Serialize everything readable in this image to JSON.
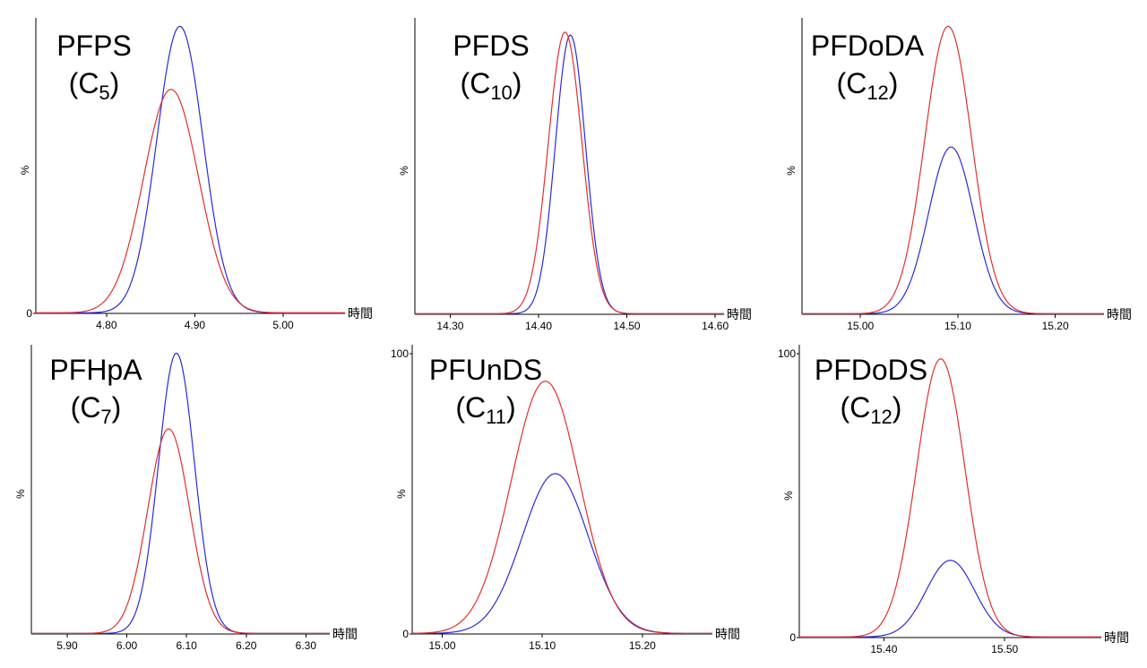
{
  "chart_data": [
    {
      "type": "line",
      "title": "PFPS",
      "subtitle": "(C5)",
      "carbon_number": "5",
      "xlabel": "時間",
      "ylabel": "%",
      "xlim": [
        4.72,
        5.07
      ],
      "ylim": [
        0,
        100
      ],
      "x_ticks": [
        4.8,
        4.9,
        5.0
      ],
      "x_tick_labels": [
        "4.80",
        "4.90",
        "5.00"
      ],
      "y_ticks": [
        0
      ],
      "y_tick_labels": [
        "0"
      ],
      "series": [
        {
          "color": "#2b2bd6",
          "values": {
            "center": 4.883,
            "sigma": 0.026,
            "peak": 100,
            "tail": 0.02
          }
        },
        {
          "color": "#e0302e",
          "values": {
            "center": 4.873,
            "sigma": 0.031,
            "peak": 78,
            "tail": 0.018
          }
        }
      ]
    },
    {
      "type": "line",
      "title": "PFDS",
      "subtitle": "(C10)",
      "carbon_number": "10",
      "xlabel": "時間",
      "ylabel": "%",
      "xlim": [
        14.26,
        14.61
      ],
      "ylim": [
        0,
        100
      ],
      "x_ticks": [
        14.3,
        14.4,
        14.5,
        14.6
      ],
      "x_tick_labels": [
        "14.30",
        "14.40",
        "14.50",
        "14.60"
      ],
      "y_ticks": [],
      "y_tick_labels": [],
      "series": [
        {
          "color": "#2b2bd6",
          "values": {
            "center": 14.436,
            "sigma": 0.017,
            "peak": 97,
            "tail": 0.012
          }
        },
        {
          "color": "#e0302e",
          "values": {
            "center": 14.43,
            "sigma": 0.019,
            "peak": 98,
            "tail": 0.012
          }
        }
      ]
    },
    {
      "type": "line",
      "title": "PFDoDA",
      "subtitle": "(C12)",
      "carbon_number": "12",
      "xlabel": "時間",
      "ylabel": "%",
      "xlim": [
        14.94,
        15.25
      ],
      "ylim": [
        0,
        100
      ],
      "x_ticks": [
        15.0,
        15.1,
        15.2
      ],
      "x_tick_labels": [
        "15.00",
        "15.10",
        "15.20"
      ],
      "y_ticks": [],
      "y_tick_labels": [],
      "series": [
        {
          "color": "#2b2bd6",
          "values": {
            "center": 15.093,
            "sigma": 0.023,
            "peak": 58,
            "tail": 0.015
          }
        },
        {
          "color": "#e0302e",
          "values": {
            "center": 15.09,
            "sigma": 0.024,
            "peak": 100,
            "tail": 0.015
          }
        }
      ]
    },
    {
      "type": "line",
      "title": "PFHpA",
      "subtitle": "(C7)",
      "carbon_number": "7",
      "xlabel": "時間",
      "ylabel": "%",
      "xlim": [
        5.84,
        6.34
      ],
      "ylim": [
        0,
        100
      ],
      "x_ticks": [
        5.9,
        6.0,
        6.1,
        6.2,
        6.3
      ],
      "x_tick_labels": [
        "5.90",
        "6.00",
        "6.10",
        "6.20",
        "6.30"
      ],
      "y_ticks": [],
      "y_tick_labels": [],
      "series": [
        {
          "color": "#2b2bd6",
          "values": {
            "center": 6.083,
            "sigma": 0.03,
            "peak": 100,
            "tail": 0.025
          }
        },
        {
          "color": "#e0302e",
          "values": {
            "center": 6.07,
            "sigma": 0.035,
            "peak": 73,
            "tail": 0.02
          }
        }
      ]
    },
    {
      "type": "line",
      "title": "PFUnDS",
      "subtitle": "(C11)",
      "carbon_number": "11",
      "xlabel": "時間",
      "ylabel": "%",
      "xlim": [
        14.97,
        15.27
      ],
      "ylim": [
        0,
        100
      ],
      "x_ticks": [
        15.0,
        15.1,
        15.2
      ],
      "x_tick_labels": [
        "15.00",
        "15.10",
        "15.20"
      ],
      "y_ticks": [
        0,
        100
      ],
      "y_tick_labels": [
        "0",
        "100"
      ],
      "series": [
        {
          "color": "#2b2bd6",
          "values": {
            "center": 15.113,
            "sigma": 0.033,
            "peak": 57,
            "tail": 0.012
          }
        },
        {
          "color": "#e0302e",
          "values": {
            "center": 15.103,
            "sigma": 0.034,
            "peak": 90,
            "tail": 0.012
          }
        }
      ]
    },
    {
      "type": "line",
      "title": "PFDoDS",
      "subtitle": "(C12)",
      "carbon_number": "12",
      "xlabel": "時間",
      "ylabel": "%",
      "xlim": [
        15.33,
        15.58
      ],
      "ylim": [
        0,
        100
      ],
      "x_ticks": [
        15.4,
        15.5
      ],
      "x_tick_labels": [
        "15.40",
        "15.50"
      ],
      "y_ticks": [
        0,
        100
      ],
      "y_tick_labels": [
        "0",
        "100"
      ],
      "series": [
        {
          "color": "#2b2bd6",
          "values": {
            "center": 15.455,
            "sigma": 0.02,
            "peak": 27,
            "tail": 0.012
          }
        },
        {
          "color": "#e0302e",
          "values": {
            "center": 15.447,
            "sigma": 0.02,
            "peak": 98,
            "tail": 0.012
          }
        }
      ]
    }
  ]
}
